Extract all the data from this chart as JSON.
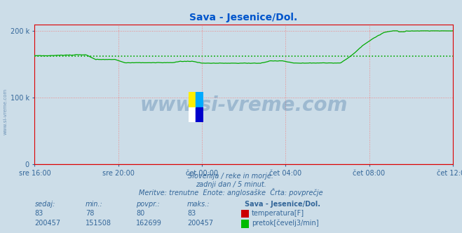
{
  "title": "Sava - Jesenice/Dol.",
  "title_color": "#0055cc",
  "background_color": "#ccdde8",
  "plot_bg_color": "#ccdde8",
  "x_labels": [
    "sre 16:00",
    "sre 20:00",
    "čet 00:00",
    "čet 04:00",
    "čet 08:00",
    "čet 12:00"
  ],
  "ylim": [
    0,
    210000
  ],
  "yticks": [
    0,
    100000,
    200000
  ],
  "ytick_labels": [
    "0",
    "100 k",
    "200 k"
  ],
  "grid_color": "#ee8888",
  "grid_style": ":",
  "axis_color": "#dd0000",
  "text_color": "#336699",
  "subtitle_lines": [
    "Slovenija / reke in morje.",
    "zadnji dan / 5 minut.",
    "Meritve: trenutne  Enote: anglosaške  Črta: povprečje"
  ],
  "watermark": "www.si-vreme.com",
  "watermark_color": "#336699",
  "watermark_alpha": 0.3,
  "table_header": [
    "sedaj:",
    "min.:",
    "povpr.:",
    "maks.:",
    "Sava - Jesenice/Dol."
  ],
  "row1": [
    "83",
    "78",
    "80",
    "83"
  ],
  "row2": [
    "200457",
    "151508",
    "162699",
    "200457"
  ],
  "legend_labels": [
    "temperatura[F]",
    "pretok[čevelj3/min]"
  ],
  "legend_colors": [
    "#cc0000",
    "#00bb00"
  ],
  "temp_color": "#dd0000",
  "flow_color": "#00aa00",
  "avg_color": "#00aa00",
  "avg_value": 162699,
  "n_points": 288,
  "logo_colors": [
    "#ffee00",
    "#00aaff",
    "#ffffff",
    "#0000cc"
  ]
}
